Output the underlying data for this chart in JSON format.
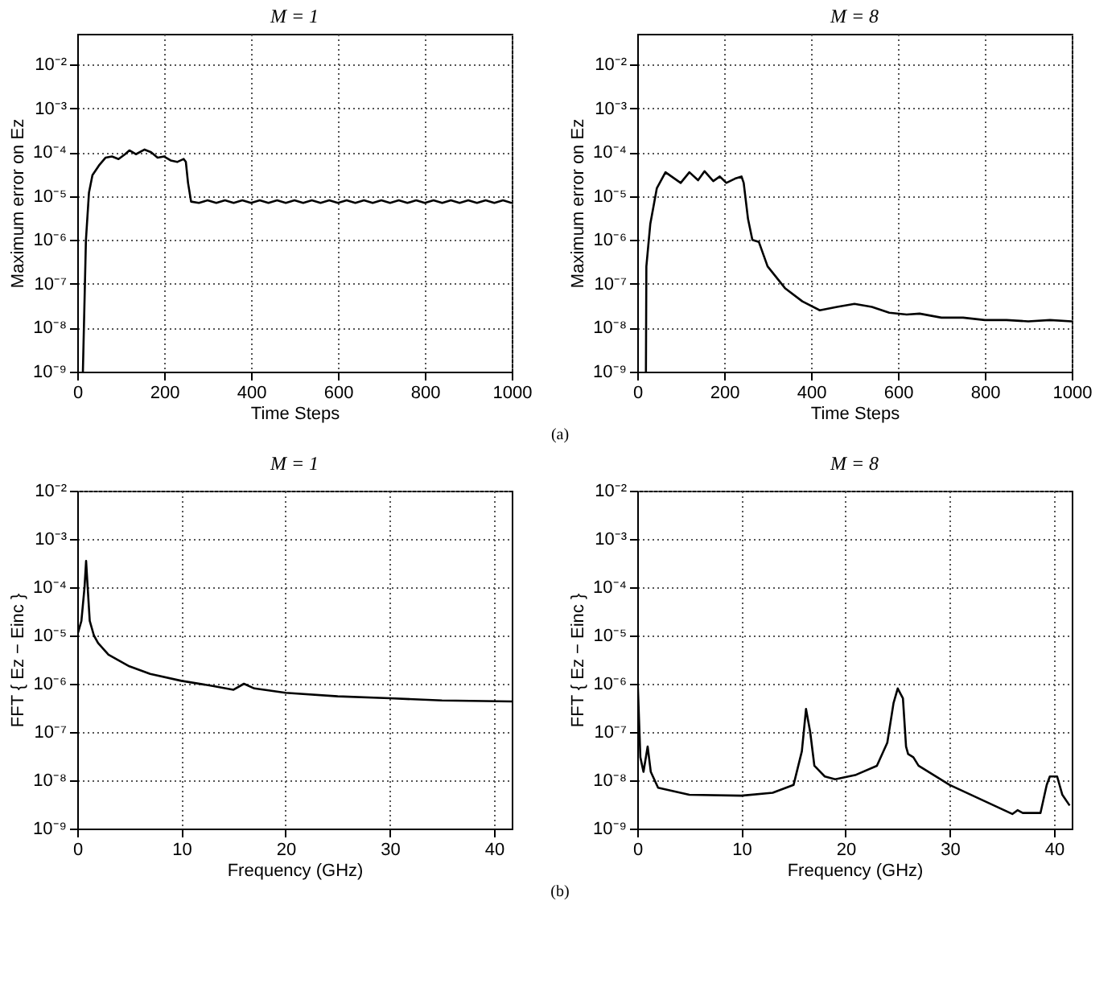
{
  "chart_data": [
    {
      "type": "line",
      "title": "M = 1",
      "xlabel": "Time Steps",
      "ylabel": "Maximum error on Ez",
      "log": "y",
      "grid": true,
      "line_style": "solid",
      "xlim": [
        0,
        1000
      ],
      "xticks": [
        0,
        200,
        400,
        600,
        800,
        1000
      ],
      "ylim": [
        1e-09,
        0.05
      ],
      "yticks": [
        {
          "value": 1e-09,
          "label": "10⁻⁹"
        },
        {
          "value": 1e-08,
          "label": "10⁻⁸"
        },
        {
          "value": 1e-07,
          "label": "10⁻⁷"
        },
        {
          "value": 1e-06,
          "label": "10⁻⁶"
        },
        {
          "value": 1e-05,
          "label": "10⁻⁵"
        },
        {
          "value": 0.0001,
          "label": "10⁻⁴"
        },
        {
          "value": 0.001,
          "label": "10⁻³"
        },
        {
          "value": 0.01,
          "label": "10⁻²"
        }
      ],
      "annotations": [
        "(a)"
      ],
      "series": [
        {
          "color": "#000000",
          "x": [
            13,
            20,
            27,
            35,
            50,
            65,
            80,
            95,
            110,
            120,
            135,
            155,
            170,
            185,
            200,
            215,
            230,
            245,
            250,
            255,
            262,
            280,
            300,
            320,
            340,
            360,
            380,
            400,
            420,
            440,
            460,
            480,
            500,
            520,
            540,
            560,
            580,
            600,
            620,
            640,
            660,
            680,
            700,
            720,
            740,
            760,
            780,
            800,
            820,
            840,
            860,
            880,
            900,
            920,
            940,
            960,
            980,
            1000
          ],
          "values": [
            1e-09,
            1e-06,
            1.2e-05,
            3e-05,
            5e-05,
            7.5e-05,
            8e-05,
            7e-05,
            9e-05,
            0.00011,
            9e-05,
            0.000115,
            0.0001,
            7.5e-05,
            8e-05,
            6.5e-05,
            6e-05,
            7e-05,
            6e-05,
            2e-05,
            7.5e-06,
            7e-06,
            8e-06,
            7e-06,
            8e-06,
            7e-06,
            8e-06,
            7e-06,
            8e-06,
            7e-06,
            8e-06,
            7e-06,
            8e-06,
            7e-06,
            8e-06,
            7e-06,
            8e-06,
            7e-06,
            8e-06,
            7e-06,
            8e-06,
            7e-06,
            8e-06,
            7e-06,
            8e-06,
            7e-06,
            8e-06,
            7e-06,
            8e-06,
            7e-06,
            8e-06,
            7e-06,
            8e-06,
            7e-06,
            8e-06,
            7e-06,
            8e-06,
            7e-06
          ]
        }
      ]
    },
    {
      "type": "line",
      "title": "M = 8",
      "xlabel": "Time Steps",
      "ylabel": "Maximum error on Ez",
      "log": "y",
      "grid": true,
      "line_style": "solid",
      "xlim": [
        0,
        1000
      ],
      "xticks": [
        0,
        200,
        400,
        600,
        800,
        1000
      ],
      "ylim": [
        1e-09,
        0.05
      ],
      "yticks": [
        {
          "value": 1e-09,
          "label": "10⁻⁹"
        },
        {
          "value": 1e-08,
          "label": "10⁻⁸"
        },
        {
          "value": 1e-07,
          "label": "10⁻⁷"
        },
        {
          "value": 1e-06,
          "label": "10⁻⁶"
        },
        {
          "value": 1e-05,
          "label": "10⁻⁵"
        },
        {
          "value": 0.0001,
          "label": "10⁻⁴"
        },
        {
          "value": 0.001,
          "label": "10⁻³"
        },
        {
          "value": 0.01,
          "label": "10⁻²"
        }
      ],
      "series": [
        {
          "color": "#000000",
          "x": [
            20,
            21,
            30,
            45,
            65,
            100,
            120,
            140,
            155,
            175,
            190,
            205,
            225,
            240,
            245,
            255,
            265,
            280,
            300,
            340,
            380,
            420,
            460,
            500,
            540,
            580,
            620,
            650,
            700,
            750,
            800,
            850,
            900,
            950,
            1000
          ],
          "values": [
            1e-09,
            2.5e-07,
            2.3e-06,
            1.5e-05,
            3.5e-05,
            2e-05,
            3.5e-05,
            2.3e-05,
            3.7e-05,
            2.2e-05,
            2.8e-05,
            2e-05,
            2.5e-05,
            2.8e-05,
            2e-05,
            3e-06,
            1e-06,
            9e-07,
            2.5e-07,
            8e-08,
            4e-08,
            2.5e-08,
            3e-08,
            3.5e-08,
            3e-08,
            2.2e-08,
            2e-08,
            2.1e-08,
            1.7e-08,
            1.7e-08,
            1.5e-08,
            1.5e-08,
            1.4e-08,
            1.5e-08,
            1.4e-08
          ]
        }
      ]
    },
    {
      "type": "line",
      "title": "M = 1",
      "xlabel": "Frequency (GHz)",
      "ylabel": "FFT { Ez − Einc }",
      "log": "y",
      "grid": true,
      "line_style": "solid",
      "xlim": [
        0,
        41.7
      ],
      "xticks": [
        0,
        10,
        20,
        30,
        40
      ],
      "ylim": [
        1e-09,
        0.01
      ],
      "yticks": [
        {
          "value": 1e-09,
          "label": "10⁻⁹"
        },
        {
          "value": 1e-08,
          "label": "10⁻⁸"
        },
        {
          "value": 1e-07,
          "label": "10⁻⁷"
        },
        {
          "value": 1e-06,
          "label": "10⁻⁶"
        },
        {
          "value": 1e-05,
          "label": "10⁻⁵"
        },
        {
          "value": 0.0001,
          "label": "10⁻⁴"
        },
        {
          "value": 0.001,
          "label": "10⁻³"
        },
        {
          "value": 0.01,
          "label": "10⁻²"
        }
      ],
      "annotations": [
        "(b)"
      ],
      "series": [
        {
          "color": "#000000",
          "x": [
            0,
            0.4,
            0.7,
            0.85,
            1.0,
            1.2,
            1.6,
            2,
            3,
            5,
            7,
            10,
            13,
            15,
            16,
            17,
            20,
            25,
            30,
            35,
            41.7
          ],
          "values": [
            1e-05,
            2e-05,
            0.0001,
            0.00035,
            0.0001,
            2e-05,
            1e-05,
            7e-06,
            4e-06,
            2.3e-06,
            1.6e-06,
            1.15e-06,
            9e-07,
            7.5e-07,
            1e-06,
            8e-07,
            6.5e-07,
            5.5e-07,
            5e-07,
            4.5e-07,
            4.3e-07
          ]
        }
      ]
    },
    {
      "type": "line",
      "title": "M = 8",
      "xlabel": "Frequency (GHz)",
      "ylabel": "FFT { Ez − Einc }",
      "log": "y",
      "grid": true,
      "line_style": "solid",
      "xlim": [
        0,
        41.7
      ],
      "xticks": [
        0,
        10,
        20,
        30,
        40
      ],
      "ylim": [
        1e-09,
        0.01
      ],
      "yticks": [
        {
          "value": 1e-09,
          "label": "10⁻⁹"
        },
        {
          "value": 1e-08,
          "label": "10⁻⁸"
        },
        {
          "value": 1e-07,
          "label": "10⁻⁷"
        },
        {
          "value": 1e-06,
          "label": "10⁻⁶"
        },
        {
          "value": 1e-05,
          "label": "10⁻⁵"
        },
        {
          "value": 0.0001,
          "label": "10⁻⁴"
        },
        {
          "value": 0.001,
          "label": "10⁻³"
        },
        {
          "value": 0.01,
          "label": "10⁻²"
        }
      ],
      "series": [
        {
          "color": "#000000",
          "x": [
            0,
            0.3,
            0.6,
            1.0,
            1.3,
            2,
            5,
            10,
            13,
            15,
            15.8,
            16.2,
            16.6,
            17,
            18,
            19,
            21,
            23,
            24,
            24.6,
            25,
            25.5,
            25.8,
            26,
            26.5,
            27,
            30,
            33,
            36,
            36.5,
            37,
            38.7,
            39.3,
            39.6,
            40.3,
            40.8,
            41.5
          ],
          "values": [
            2e-06,
            3e-08,
            1.5e-08,
            5e-08,
            1.5e-08,
            7e-09,
            5e-09,
            4.8e-09,
            5.5e-09,
            8e-09,
            4e-08,
            3e-07,
            1e-07,
            2e-08,
            1.2e-08,
            1.05e-08,
            1.3e-08,
            2e-08,
            6e-08,
            4e-07,
            8e-07,
            5e-07,
            5e-08,
            3.5e-08,
            3e-08,
            2e-08,
            8e-09,
            4e-09,
            2e-09,
            2.4e-09,
            2.1e-09,
            2.1e-09,
            8e-09,
            1.2e-08,
            1.2e-08,
            5e-09,
            3e-09
          ]
        }
      ]
    }
  ]
}
